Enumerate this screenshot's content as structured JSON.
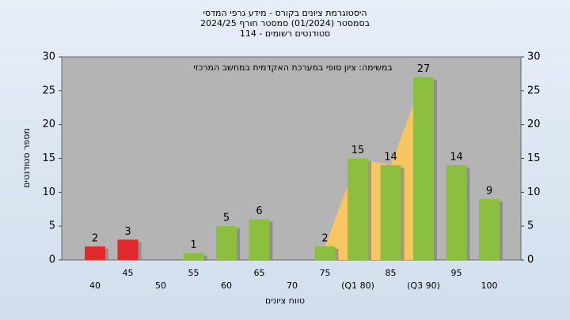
{
  "chart_data": {
    "type": "bar",
    "title": "היסטוגרמת ציונים בקורס - מידע גרפי המדסי",
    "subtitle": "בסמסטר (01/2024) סמסטר חורף 2024/25",
    "subtitle2": "סטודנטים רשומים - 114",
    "annotation": "במשימה: ציון סופי במערכת האקדמית במחשב המרכזי",
    "x_label": "טווח ציונים",
    "y_label": "מספר סטודנטים",
    "categories": [
      "40",
      "45",
      "50",
      "55",
      "60",
      "65",
      "70",
      "75",
      "(Q1 80)",
      "85",
      "(Q3 90)",
      "95",
      "100"
    ],
    "values": [
      2,
      3,
      0,
      1,
      5,
      6,
      0,
      2,
      15,
      14,
      27,
      14,
      9
    ],
    "colors": [
      "#e0282d",
      "#e0282d",
      "#8cbf3f",
      "#8cbf3f",
      "#8cbf3f",
      "#8cbf3f",
      "#8cbf3f",
      "#8cbf3f",
      "#8cbf3f",
      "#8cbf3f",
      "#8cbf3f",
      "#8cbf3f",
      "#8cbf3f"
    ],
    "ylim": [
      0,
      30
    ],
    "yticks": [
      0,
      5,
      10,
      15,
      20,
      25,
      30
    ],
    "y2lim": [
      0,
      30
    ],
    "y2ticks": [
      0,
      5,
      10,
      15,
      20,
      25,
      30
    ],
    "grid": true
  }
}
